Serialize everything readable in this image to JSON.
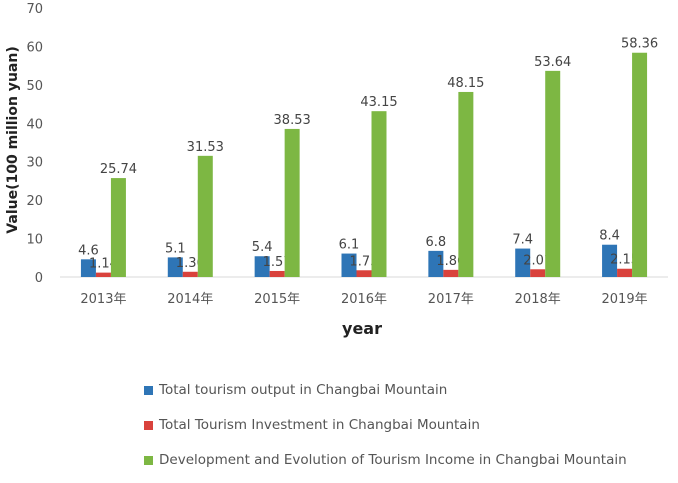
{
  "chart_data": {
    "type": "bar",
    "categories": [
      "2013年",
      "2014年",
      "2015年",
      "2016年",
      "2017年",
      "2018年",
      "2019年"
    ],
    "series": [
      {
        "name": "Total tourism output in Changbai Mountain",
        "values": [
          4.6,
          5.1,
          5.4,
          6.1,
          6.8,
          7.4,
          8.4
        ],
        "color": "#2e75b6"
      },
      {
        "name": "Total Tourism Investment in Changbai Mountain",
        "values": [
          1.14,
          1.36,
          1.57,
          1.75,
          1.86,
          2.01,
          2.15
        ],
        "color": "#d9423c"
      },
      {
        "name": "Development and Evolution of Tourism Income in Changbai Mountain",
        "values": [
          25.74,
          31.53,
          38.53,
          43.15,
          48.15,
          53.64,
          58.36
        ],
        "color": "#7db743"
      }
    ],
    "xlabel": "year",
    "ylabel": "Value(100 million yuan)",
    "ylim": [
      0,
      70
    ],
    "yticks": [
      0,
      10,
      20,
      30,
      40,
      50,
      60,
      70
    ],
    "grid": false,
    "legend_position": "bottom"
  }
}
